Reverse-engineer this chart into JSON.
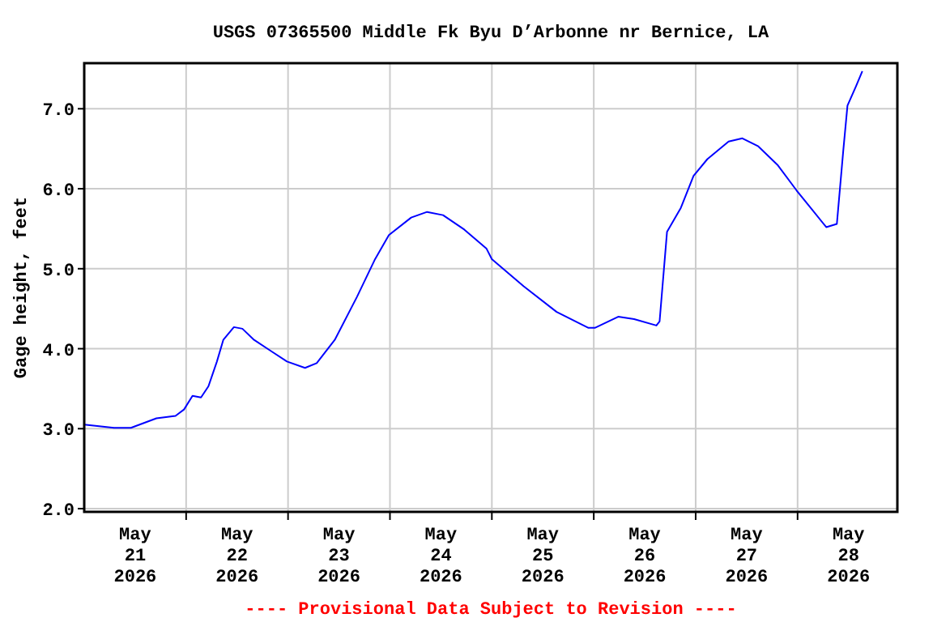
{
  "chart_data": {
    "type": "line",
    "title": "USGS 07365500 Middle Fk Byu D’Arbonne nr Bernice, LA",
    "ylabel": "Gage height, feet",
    "annotations": [
      "---- Provisional Data Subject to Revision ----"
    ],
    "x": [
      "2026-05-21T00:00",
      "2026-05-21T07:00",
      "2026-05-21T11:00",
      "2026-05-21T17:00",
      "2026-05-21T21:30",
      "2026-05-21T23:30",
      "2026-05-22T01:30",
      "2026-05-22T03:30",
      "2026-05-22T05:15",
      "2026-05-22T07:15",
      "2026-05-22T08:45",
      "2026-05-22T11:15",
      "2026-05-22T13:15",
      "2026-05-22T16:00",
      "2026-05-22T20:00",
      "2026-05-22T23:45",
      "2026-05-23T04:00",
      "2026-05-23T06:45",
      "2026-05-23T11:00",
      "2026-05-23T16:15",
      "2026-05-23T20:30",
      "2026-05-23T23:45",
      "2026-05-24T05:00",
      "2026-05-24T08:45",
      "2026-05-24T12:30",
      "2026-05-24T17:30",
      "2026-05-24T22:45",
      "2026-05-25T00:00",
      "2026-05-25T07:30",
      "2026-05-25T15:15",
      "2026-05-25T22:45",
      "2026-05-26T00:15",
      "2026-05-26T05:45",
      "2026-05-26T09:30",
      "2026-05-26T14:45",
      "2026-05-26T15:30",
      "2026-05-26T17:15",
      "2026-05-26T20:30",
      "2026-05-26T23:30",
      "2026-05-27T02:45",
      "2026-05-27T07:45",
      "2026-05-27T11:00",
      "2026-05-27T14:45",
      "2026-05-27T19:15",
      "2026-05-27T23:45",
      "2026-05-28T06:45",
      "2026-05-28T09:15",
      "2026-05-28T10:45",
      "2026-05-28T11:45",
      "2026-05-28T13:45",
      "2026-05-28T15:15"
    ],
    "series": [
      {
        "color": "#0000ff",
        "values": [
          3.05,
          3.01,
          3.01,
          3.13,
          3.16,
          3.24,
          3.41,
          3.39,
          3.53,
          3.84,
          4.11,
          4.27,
          4.25,
          4.11,
          3.97,
          3.84,
          3.76,
          3.82,
          4.11,
          4.65,
          5.12,
          5.42,
          5.64,
          5.71,
          5.67,
          5.49,
          5.25,
          5.12,
          4.78,
          4.46,
          4.26,
          4.26,
          4.4,
          4.37,
          4.29,
          4.34,
          5.46,
          5.76,
          6.16,
          6.37,
          6.59,
          6.63,
          6.53,
          6.3,
          5.98,
          5.52,
          5.56,
          6.47,
          7.04,
          7.28,
          7.47
        ]
      }
    ],
    "xlim": [
      "2026-05-21T00:00",
      "2026-05-28T23:30"
    ],
    "xticks": [
      {
        "value": "2026-05-21T12:00",
        "label": "May\n21\n2026"
      },
      {
        "value": "2026-05-22T00:00",
        "label": null
      },
      {
        "value": "2026-05-22T12:00",
        "label": "May\n22\n2026"
      },
      {
        "value": "2026-05-23T00:00",
        "label": null
      },
      {
        "value": "2026-05-23T12:00",
        "label": "May\n23\n2026"
      },
      {
        "value": "2026-05-24T00:00",
        "label": null
      },
      {
        "value": "2026-05-24T12:00",
        "label": "May\n24\n2026"
      },
      {
        "value": "2026-05-25T00:00",
        "label": null
      },
      {
        "value": "2026-05-25T12:00",
        "label": "May\n25\n2026"
      },
      {
        "value": "2026-05-26T00:00",
        "label": null
      },
      {
        "value": "2026-05-26T12:00",
        "label": "May\n26\n2026"
      },
      {
        "value": "2026-05-27T00:00",
        "label": null
      },
      {
        "value": "2026-05-27T12:00",
        "label": "May\n27\n2026"
      },
      {
        "value": "2026-05-28T00:00",
        "label": null
      },
      {
        "value": "2026-05-28T12:00",
        "label": "May\n28\n2026"
      }
    ],
    "ylim": [
      1.96,
      7.57
    ],
    "yticks": [
      {
        "value": 2,
        "label": "2.0"
      },
      {
        "value": 3,
        "label": "3.0"
      },
      {
        "value": 4,
        "label": "4.0"
      },
      {
        "value": 5,
        "label": "5.0"
      },
      {
        "value": 6,
        "label": "6.0"
      },
      {
        "value": 7,
        "label": "7.0"
      }
    ],
    "grid": true,
    "marker": "none",
    "line_style": "solid"
  }
}
